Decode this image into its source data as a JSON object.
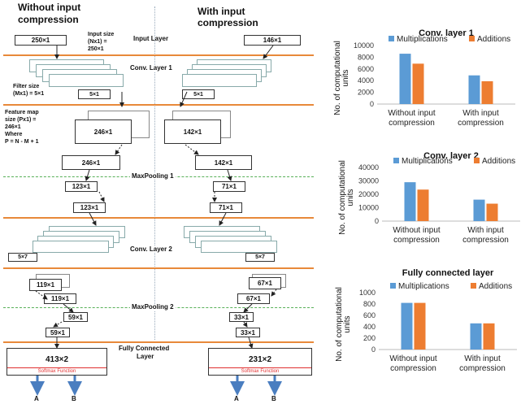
{
  "diagram": {
    "col_left_title_1": "Without input",
    "col_left_title_2": "compression",
    "col_right_title_1": "With input",
    "col_right_title_2": "compression",
    "input_size_1": "Input size",
    "input_size_2": "(Nx1) =",
    "input_size_3": "250×1",
    "input_layer": "Input Layer",
    "in_left": "250×1",
    "in_right": "146×1",
    "conv1": "Conv. Layer 1",
    "filter_1": "Filter size",
    "filter_2": "(Mx1) = 5×1",
    "filter_box": "5×1",
    "fmap_1": "Feature map",
    "fmap_2": "size (Px1) =",
    "fmap_3": "246×1",
    "fmap_4": "Where",
    "fmap_5": "P = N - M + 1",
    "c1_left": "246×1",
    "c1_right": "142×1",
    "maxpool1": "MaxPooling 1",
    "mp1_left": "123×1",
    "mp1_right": "71×1",
    "conv2": "Conv. Layer 2",
    "c2_filter": "5×7",
    "c2_left": "119×1",
    "c2_right": "67×1",
    "maxpool2": "MaxPooling 2",
    "mp2_left": "59×1",
    "mp2_right": "33×1",
    "fc_1": "Fully Connected",
    "fc_2": "Layer",
    "fc_left": "413×2",
    "fc_right": "231×2",
    "softmax": "Softmax Function",
    "out_a": "A",
    "out_b": "B"
  },
  "chart_data": [
    {
      "type": "bar",
      "title": "Conv. layer 1",
      "ylabel": "No. of computational units",
      "categories": [
        "Without input compression",
        "With input compression"
      ],
      "series": [
        {
          "name": "Multiplications",
          "values": [
            8600,
            4900
          ]
        },
        {
          "name": "Additions",
          "values": [
            6900,
            3900
          ]
        }
      ],
      "ylim": [
        0,
        10000
      ],
      "yticks": [
        "0",
        "2000",
        "4000",
        "6000",
        "8000",
        "10000"
      ],
      "legend": "top"
    },
    {
      "type": "bar",
      "title": "Conv. layer 2",
      "ylabel": "No. of computational units",
      "categories": [
        "Without input compression",
        "With input compression"
      ],
      "series": [
        {
          "name": "Multiplications",
          "values": [
            29000,
            16000
          ]
        },
        {
          "name": "Additions",
          "values": [
            23500,
            13000
          ]
        }
      ],
      "ylim": [
        0,
        40000
      ],
      "yticks": [
        "0",
        "10000",
        "20000",
        "30000",
        "40000"
      ],
      "legend": "top"
    },
    {
      "type": "bar",
      "title": "Fully connected layer",
      "ylabel": "No. of computational units",
      "categories": [
        "Without input compression",
        "With input compression"
      ],
      "series": [
        {
          "name": "Multiplications",
          "values": [
            820,
            460
          ]
        },
        {
          "name": "Additions",
          "values": [
            820,
            460
          ]
        }
      ],
      "ylim": [
        0,
        1000
      ],
      "yticks": [
        "0",
        "200",
        "400",
        "600",
        "800",
        "1000"
      ],
      "legend": "top"
    }
  ],
  "colors": {
    "multiplications": "#5b9bd5",
    "additions": "#ed7d31",
    "layer_line": "#e8893a",
    "pool_line": "#58b058",
    "softmax": "#e03030",
    "arrow": "#4a7ec0"
  }
}
